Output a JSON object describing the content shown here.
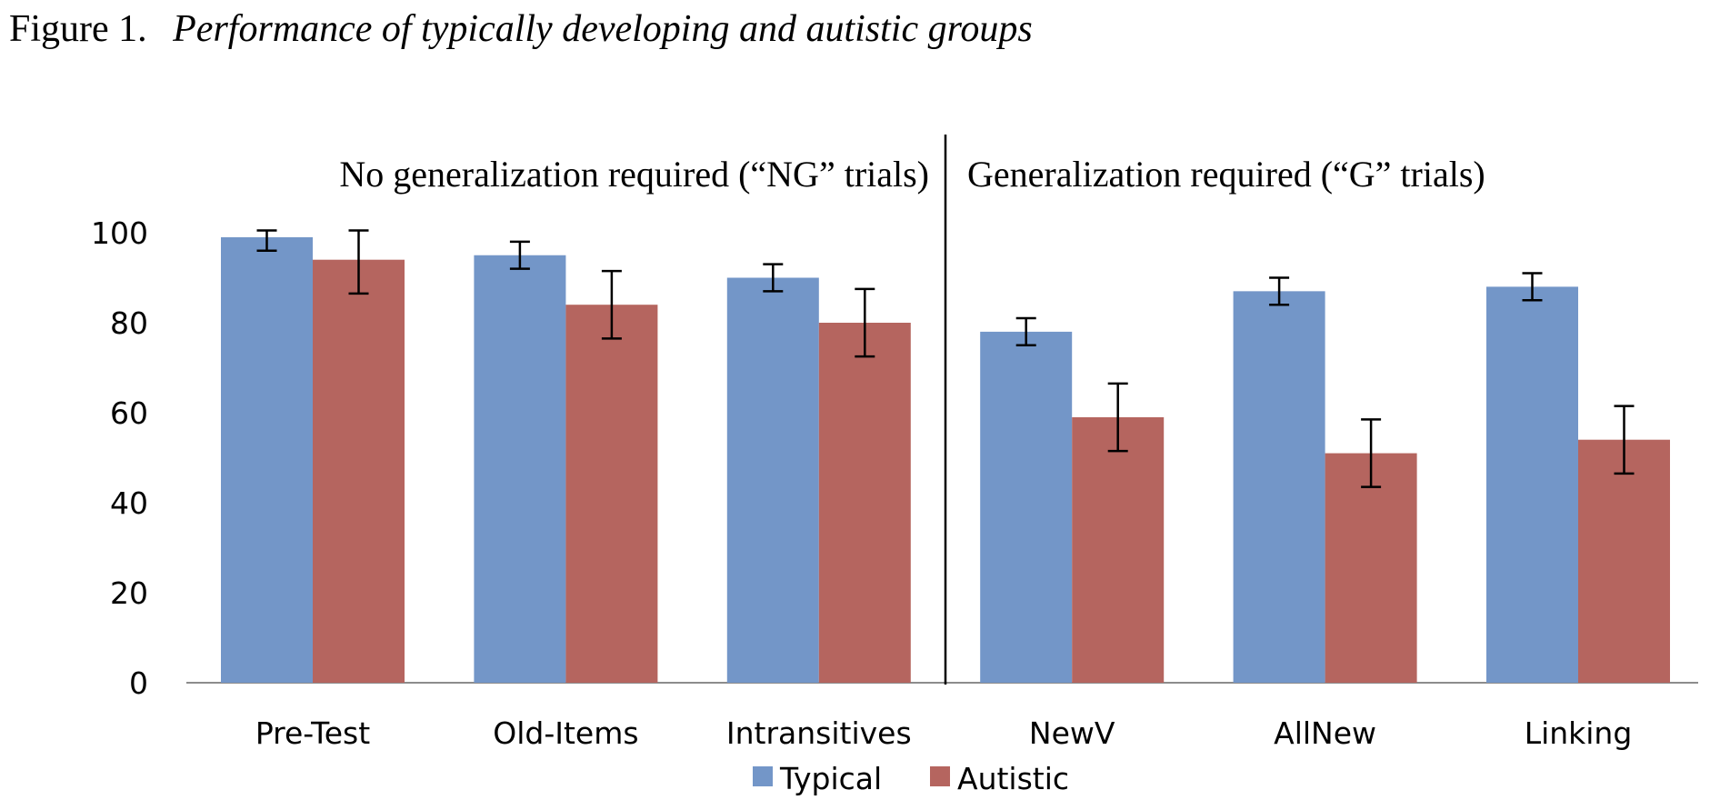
{
  "figure": {
    "label": "Figure 1.",
    "title": "Performance of typically developing and autistic groups"
  },
  "chart_data": {
    "type": "bar",
    "title": "Performance of typically developing and autistic groups",
    "categories": [
      "Pre-Test",
      "Old-Items",
      "Intransitives",
      "NewV",
      "AllNew",
      "Linking"
    ],
    "series": [
      {
        "name": "Typical",
        "color": "#7396C8",
        "values": [
          99,
          95,
          90,
          78,
          87,
          88
        ],
        "errors": [
          3,
          3,
          3,
          3,
          3,
          3
        ]
      },
      {
        "name": "Autistic",
        "color": "#B5655F",
        "values": [
          94,
          84,
          80,
          59,
          51,
          54
        ],
        "errors": [
          7.5,
          7.5,
          7.5,
          7.5,
          7.5,
          7.5
        ]
      }
    ],
    "ylim": [
      0,
      100
    ],
    "yticks": [
      0,
      20,
      40,
      60,
      80,
      100
    ],
    "xlabel": "",
    "ylabel": "",
    "legend_position": "bottom",
    "grid": false,
    "sections": [
      {
        "label": "No generalization required (“NG” trials)",
        "categories": [
          "Pre-Test",
          "Old-Items",
          "Intransitives"
        ]
      },
      {
        "label": "Generalization required (“G” trials)",
        "categories": [
          "NewV",
          "AllNew",
          "Linking"
        ]
      }
    ]
  }
}
